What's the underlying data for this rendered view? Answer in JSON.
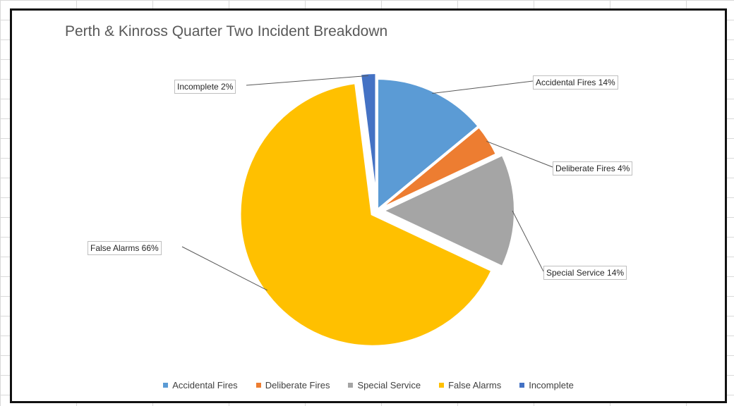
{
  "chart_data": {
    "type": "pie",
    "title": "Perth & Kinross Quarter Two Incident Breakdown",
    "categories": [
      "Accidental Fires",
      "Deliberate Fires",
      "Special Service",
      "False Alarms",
      "Incomplete"
    ],
    "values": [
      14,
      4,
      14,
      66,
      2
    ],
    "value_unit": "%",
    "data_labels": [
      "Accidental Fires 14%",
      "Deliberate Fires 4%",
      "Special Service 14%",
      "False Alarms 66%",
      "Incomplete 2%"
    ],
    "colors": [
      "#5b9bd5",
      "#ed7d31",
      "#a5a5a5",
      "#ffc000",
      "#4472c4"
    ],
    "exploded": true,
    "legend_position": "bottom"
  }
}
